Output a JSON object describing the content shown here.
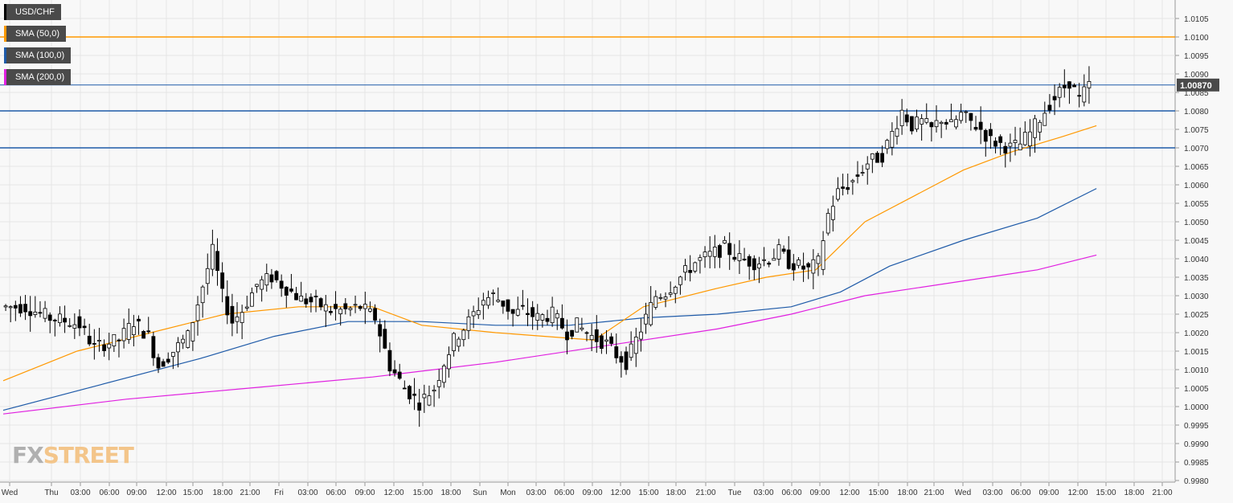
{
  "chart_data": {
    "type": "candlestick",
    "symbol": "USD/CHF",
    "indicators": [
      {
        "name": "SMA (50,0)",
        "color": "#ff9800"
      },
      {
        "name": "SMA (100,0)",
        "color": "#1e5aa8"
      },
      {
        "name": "SMA (200,0)",
        "color": "#e020e0"
      }
    ],
    "price_label": "1.00870",
    "last_price": 1.0087,
    "ylim": [
      0.998,
      1.0108
    ],
    "y_ticks": [
      "1.0105",
      "1.0100",
      "1.0095",
      "1.0090",
      "1.0085",
      "1.0080",
      "1.0075",
      "1.0070",
      "1.0065",
      "1.0060",
      "1.0055",
      "1.0050",
      "1.0045",
      "1.0040",
      "1.0035",
      "1.0030",
      "1.0025",
      "1.0020",
      "1.0015",
      "1.0010",
      "1.0005",
      "1.0000",
      "0.9995",
      "0.9990",
      "0.9985",
      "0.9980"
    ],
    "x_ticks": [
      "Wed",
      "Thu",
      "03:00",
      "06:00",
      "09:00",
      "12:00",
      "15:00",
      "18:00",
      "21:00",
      "Fri",
      "03:00",
      "06:00",
      "09:00",
      "12:00",
      "15:00",
      "18:00",
      "Sun",
      "Mon",
      "03:00",
      "06:00",
      "09:00",
      "12:00",
      "15:00",
      "18:00",
      "21:00",
      "Tue",
      "03:00",
      "06:00",
      "09:00",
      "12:00",
      "15:00",
      "18:00",
      "21:00",
      "Wed",
      "03:00",
      "06:00",
      "09:00",
      "12:00",
      "15:00",
      "18:00",
      "21:00"
    ],
    "horizontal_levels": [
      {
        "value": 1.01,
        "color": "#ff9800"
      },
      {
        "value": 1.0087,
        "color": "#1e5aa8"
      },
      {
        "value": 1.008,
        "color": "#1e5aa8"
      },
      {
        "value": 1.007,
        "color": "#1e5aa8"
      }
    ],
    "close_path": [
      [
        0,
        1.0027
      ],
      [
        10,
        1.0027
      ],
      [
        20,
        1.0024
      ],
      [
        28,
        1.0023
      ],
      [
        32,
        1.0022
      ],
      [
        38,
        1.0016
      ],
      [
        42,
        1.0017
      ],
      [
        48,
        1.0018
      ],
      [
        54,
        1.0023
      ],
      [
        60,
        1.0019
      ],
      [
        64,
        1.0011
      ],
      [
        70,
        1.0015
      ],
      [
        76,
        1.0019
      ],
      [
        80,
        1.0028
      ],
      [
        86,
        1.0042
      ],
      [
        90,
        1.003
      ],
      [
        94,
        1.0023
      ],
      [
        98,
        1.0026
      ],
      [
        104,
        1.0033
      ],
      [
        110,
        1.0035
      ],
      [
        116,
        1.0032
      ],
      [
        122,
        1.0029
      ],
      [
        128,
        1.0028
      ],
      [
        134,
        1.0026
      ],
      [
        140,
        1.0026
      ],
      [
        146,
        1.0027
      ],
      [
        152,
        1.0024
      ],
      [
        158,
        1.0011
      ],
      [
        164,
        1.0005
      ],
      [
        170,
        1.0001
      ],
      [
        176,
        1.0005
      ],
      [
        180,
        1.0012
      ],
      [
        184,
        1.0018
      ],
      [
        190,
        1.0023
      ],
      [
        196,
        1.0029
      ],
      [
        200,
        1.003
      ],
      [
        204,
        1.0028
      ],
      [
        208,
        1.0025
      ],
      [
        212,
        1.0026
      ],
      [
        218,
        1.0024
      ],
      [
        224,
        1.0025
      ],
      [
        230,
        1.002
      ],
      [
        234,
        1.0022
      ],
      [
        240,
        1.0019
      ],
      [
        246,
        1.0017
      ],
      [
        250,
        1.0014
      ],
      [
        254,
        1.0012
      ],
      [
        258,
        1.0018
      ],
      [
        262,
        1.0024
      ],
      [
        266,
        1.003
      ],
      [
        270,
        1.0031
      ],
      [
        276,
        1.0035
      ],
      [
        282,
        1.0039
      ],
      [
        288,
        1.0041
      ],
      [
        294,
        1.0043
      ],
      [
        300,
        1.004
      ],
      [
        306,
        1.0039
      ],
      [
        312,
        1.004
      ],
      [
        316,
        1.0042
      ],
      [
        320,
        1.0039
      ],
      [
        324,
        1.0038
      ],
      [
        328,
        1.0037
      ],
      [
        332,
        1.0039
      ],
      [
        336,
        1.0052
      ],
      [
        340,
        1.0058
      ],
      [
        346,
        1.0061
      ],
      [
        352,
        1.0066
      ],
      [
        358,
        1.0068
      ],
      [
        362,
        1.0074
      ],
      [
        366,
        1.008
      ],
      [
        370,
        1.0076
      ],
      [
        374,
        1.0077
      ],
      [
        378,
        1.0075
      ],
      [
        382,
        1.0078
      ],
      [
        386,
        1.0076
      ],
      [
        390,
        1.0079
      ],
      [
        394,
        1.0077
      ],
      [
        398,
        1.0075
      ],
      [
        402,
        1.0072
      ],
      [
        406,
        1.0071
      ],
      [
        410,
        1.007
      ],
      [
        414,
        1.0071
      ],
      [
        418,
        1.0074
      ],
      [
        422,
        1.0078
      ],
      [
        426,
        1.0082
      ],
      [
        430,
        1.0085
      ],
      [
        434,
        1.0088
      ],
      [
        438,
        1.0083
      ],
      [
        442,
        1.0087
      ]
    ],
    "sma50": [
      [
        0,
        1.0007
      ],
      [
        30,
        1.0015
      ],
      [
        60,
        1.002
      ],
      [
        90,
        1.0025
      ],
      [
        120,
        1.0027
      ],
      [
        150,
        1.0027
      ],
      [
        170,
        1.0022
      ],
      [
        200,
        1.002
      ],
      [
        220,
        1.0019
      ],
      [
        240,
        1.0018
      ],
      [
        260,
        1.0027
      ],
      [
        290,
        1.0032
      ],
      [
        310,
        1.0035
      ],
      [
        330,
        1.0037
      ],
      [
        350,
        1.005
      ],
      [
        370,
        1.0057
      ],
      [
        390,
        1.0064
      ],
      [
        410,
        1.0069
      ],
      [
        430,
        1.0073
      ],
      [
        444,
        1.0076
      ]
    ],
    "sma100": [
      [
        0,
        0.9999
      ],
      [
        40,
        1.0006
      ],
      [
        80,
        1.0013
      ],
      [
        110,
        1.0019
      ],
      [
        140,
        1.0023
      ],
      [
        170,
        1.0023
      ],
      [
        200,
        1.0022
      ],
      [
        230,
        1.0022
      ],
      [
        260,
        1.0024
      ],
      [
        290,
        1.0025
      ],
      [
        320,
        1.0027
      ],
      [
        340,
        1.0031
      ],
      [
        360,
        1.0038
      ],
      [
        390,
        1.0045
      ],
      [
        420,
        1.0051
      ],
      [
        444,
        1.0059
      ]
    ],
    "sma200": [
      [
        0,
        0.9998
      ],
      [
        50,
        1.0002
      ],
      [
        100,
        1.0005
      ],
      [
        150,
        1.0008
      ],
      [
        200,
        1.0012
      ],
      [
        250,
        1.0017
      ],
      [
        290,
        1.0021
      ],
      [
        320,
        1.0025
      ],
      [
        350,
        1.003
      ],
      [
        390,
        1.0034
      ],
      [
        420,
        1.0037
      ],
      [
        444,
        1.0041
      ]
    ],
    "watermark_fx": "FX",
    "watermark_street": "STREET"
  }
}
